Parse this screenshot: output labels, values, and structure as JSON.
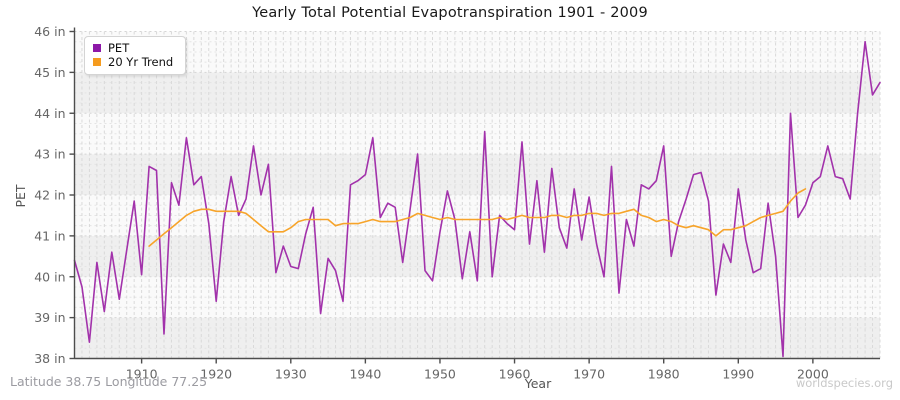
{
  "header": {
    "title": "Yearly Total Potential Evapotranspiration 1901 - 2009"
  },
  "axes": {
    "xlabel": "Year",
    "ylabel": "PET"
  },
  "footer": {
    "left": "Latitude 38.75 Longitude 77.25",
    "right": "worldspecies.org"
  },
  "chart_data": {
    "type": "line",
    "title": "Yearly Total Potential Evapotranspiration 1901 - 2009",
    "xlabel": "Year",
    "ylabel": "PET",
    "xlim": [
      1901,
      2009
    ],
    "ylim": [
      38,
      46
    ],
    "x_ticks": [
      1910,
      1920,
      1930,
      1940,
      1950,
      1960,
      1970,
      1980,
      1990,
      2000
    ],
    "y_ticks": [
      38,
      39,
      40,
      41,
      42,
      43,
      44,
      45,
      46
    ],
    "y_tick_labels": [
      "38 in",
      "39 in",
      "40 in",
      "41 in",
      "42 in",
      "43 in",
      "44 in",
      "45 in",
      "46 in"
    ],
    "grid": true,
    "legend_position": "top-left",
    "axis_color": "#4d4d4d",
    "band_colors": {
      "light": "#fafafa",
      "dark": "#efefef"
    },
    "grid_colors": {
      "vertical": "#d9d9d9",
      "minor_h": "#e4e4e4",
      "major_h": "#d5d5d5"
    },
    "series": [
      {
        "name": "PET",
        "color": "#a232ab",
        "marker_color": "#8d18a8",
        "x_start": 1901,
        "x_step": 1,
        "values": [
          40.4,
          39.75,
          38.4,
          40.35,
          39.15,
          40.6,
          39.45,
          40.65,
          41.85,
          40.05,
          42.7,
          42.6,
          38.6,
          42.3,
          41.75,
          43.4,
          42.25,
          42.45,
          41.3,
          39.4,
          41.35,
          42.45,
          41.5,
          41.9,
          43.2,
          42.0,
          42.75,
          40.1,
          40.75,
          40.25,
          40.2,
          41.05,
          41.7,
          39.1,
          40.45,
          40.15,
          39.4,
          42.25,
          42.35,
          42.5,
          43.4,
          41.45,
          41.8,
          41.7,
          40.35,
          41.65,
          43.0,
          40.15,
          39.9,
          41.1,
          42.1,
          41.4,
          39.95,
          41.1,
          39.9,
          43.55,
          40.0,
          41.5,
          41.3,
          41.15,
          43.3,
          40.8,
          42.35,
          40.6,
          42.65,
          41.2,
          40.7,
          42.15,
          40.9,
          41.95,
          40.8,
          40.0,
          42.7,
          39.6,
          41.4,
          40.75,
          42.25,
          42.15,
          42.35,
          43.2,
          40.5,
          41.35,
          41.9,
          42.5,
          42.55,
          41.85,
          39.55,
          40.8,
          40.35,
          42.15,
          40.9,
          40.1,
          40.2,
          41.8,
          40.5,
          38.05,
          44.0,
          41.45,
          41.75,
          42.3,
          42.45,
          43.2,
          42.45,
          42.4,
          41.9,
          44.0,
          45.75,
          44.45,
          44.75
        ]
      },
      {
        "name": "20 Yr Trend",
        "color": "#f7a42a",
        "marker_color": "#f59b1e",
        "x_start": 1911,
        "x_step": 1,
        "values": [
          40.75,
          40.9,
          41.05,
          41.2,
          41.35,
          41.5,
          41.6,
          41.65,
          41.65,
          41.6,
          41.6,
          41.6,
          41.6,
          41.55,
          41.4,
          41.25,
          41.1,
          41.1,
          41.1,
          41.2,
          41.35,
          41.4,
          41.4,
          41.4,
          41.4,
          41.25,
          41.3,
          41.3,
          41.3,
          41.35,
          41.4,
          41.35,
          41.35,
          41.35,
          41.4,
          41.45,
          41.55,
          41.5,
          41.45,
          41.4,
          41.45,
          41.4,
          41.4,
          41.4,
          41.4,
          41.4,
          41.4,
          41.45,
          41.4,
          41.45,
          41.5,
          41.45,
          41.45,
          41.45,
          41.5,
          41.5,
          41.45,
          41.5,
          41.5,
          41.55,
          41.55,
          41.5,
          41.55,
          41.55,
          41.6,
          41.65,
          41.5,
          41.45,
          41.35,
          41.4,
          41.35,
          41.25,
          41.2,
          41.25,
          41.2,
          41.15,
          41.0,
          41.15,
          41.15,
          41.2,
          41.25,
          41.35,
          41.45,
          41.5,
          41.55,
          41.6,
          41.85,
          42.05,
          42.15
        ]
      }
    ]
  }
}
